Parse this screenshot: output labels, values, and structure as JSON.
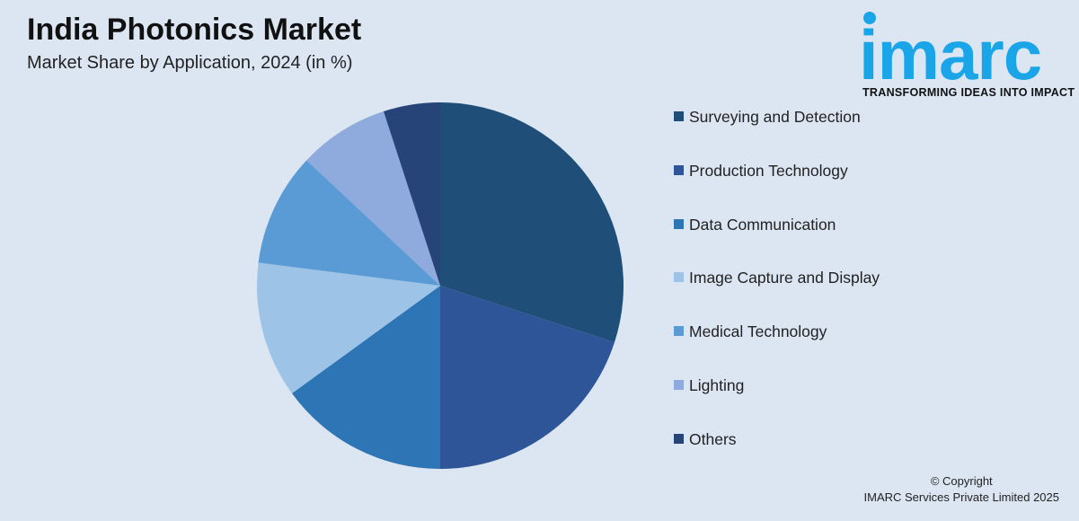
{
  "header": {
    "title": "India Photonics Market",
    "subtitle": "Market Share by Application, 2024 (in %)"
  },
  "logo": {
    "wordmark": "imarc",
    "tagline": "TRANSFORMING IDEAS INTO IMPACT",
    "color": "#1aa5e8"
  },
  "chart_data": {
    "type": "pie",
    "categories": [
      "Surveying and Detection",
      "Production Technology",
      "Data Communication",
      "Image Capture and Display",
      "Medical Technology",
      "Lighting",
      "Others"
    ],
    "values": [
      30,
      20,
      15,
      12,
      10,
      8,
      5
    ],
    "colors": [
      "#1f4e79",
      "#2e5597",
      "#2e75b6",
      "#9dc3e6",
      "#5b9bd5",
      "#8faadc",
      "#264478"
    ],
    "start_angle": "12 o'clock",
    "direction": "clockwise",
    "legend": "right"
  },
  "footer": {
    "copyright_line1": "© Copyright",
    "copyright_line2": "IMARC Services Private Limited 2025"
  }
}
